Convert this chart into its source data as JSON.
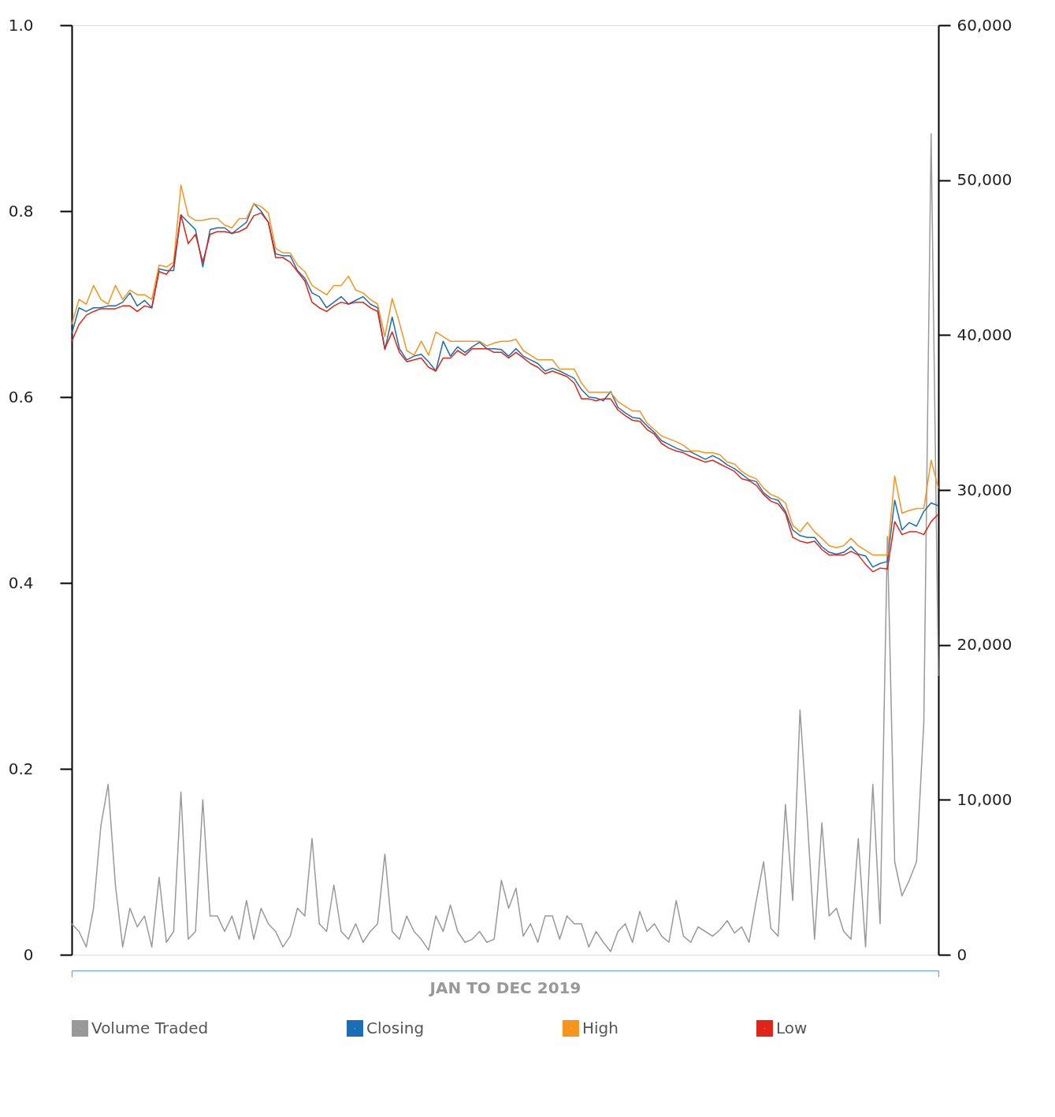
{
  "chart_data": {
    "type": "line",
    "xlabel": "JAN TO DEC 2019",
    "categories": [
      null,
      null,
      null,
      null,
      null,
      null,
      null,
      null,
      null,
      null,
      null,
      null,
      null,
      null,
      null,
      null,
      null,
      null,
      null,
      null,
      null,
      null,
      null,
      null,
      null,
      null,
      null,
      null,
      null,
      null,
      null,
      null,
      null,
      null,
      null,
      null,
      null,
      null,
      null,
      null,
      null,
      null,
      null,
      null,
      null,
      null,
      null,
      null,
      null,
      null,
      null,
      null,
      null,
      null,
      null,
      null,
      null,
      null,
      null,
      null,
      null,
      null,
      null,
      null,
      null,
      null,
      null,
      null,
      null,
      null,
      null,
      null,
      null,
      null,
      null,
      null,
      null,
      null,
      null,
      null,
      null,
      null,
      null,
      null,
      null,
      null,
      null,
      null,
      null,
      null,
      null,
      null,
      null,
      null,
      null,
      null,
      null,
      null,
      null,
      null,
      null,
      null,
      null,
      null,
      null,
      null,
      null,
      null,
      null,
      null,
      null,
      null,
      null,
      null,
      null,
      null,
      null,
      null,
      null,
      null
    ],
    "ylim": [
      0,
      1
    ],
    "yticks": [
      0,
      0.2,
      0.4,
      0.6,
      0.8,
      {
        "value": 1,
        "label": "1.0"
      }
    ],
    "y2lim": [
      0,
      60000
    ],
    "y2ticks": [
      0,
      {
        "value": 10000,
        "label": "10,000"
      },
      {
        "value": 20000,
        "label": "20,000"
      },
      {
        "value": 30000,
        "label": "30,000"
      },
      {
        "value": 40000,
        "label": "40,000"
      },
      {
        "value": 50000,
        "label": "50,000"
      },
      {
        "value": 60000,
        "label": "60,000"
      }
    ],
    "grid": false,
    "legend": "bottom",
    "tick_labels": "y",
    "marker": "none",
    "line_style": "solid",
    "series": [
      {
        "name": "Volume Traded",
        "color": "#999999",
        "axis": "y2",
        "values": [
          2000,
          1500,
          500,
          3000,
          8300,
          11000,
          4500,
          500,
          3000,
          1800,
          2500,
          500,
          5000,
          800,
          1500,
          10500,
          1000,
          1500,
          10000,
          2500,
          2500,
          1500,
          2500,
          1000,
          3500,
          1000,
          3000,
          2000,
          1500,
          500,
          1200,
          3000,
          2500,
          7500,
          2000,
          1500,
          4500,
          1500,
          1000,
          2000,
          800,
          1500,
          2000,
          6500,
          1500,
          1000,
          2500,
          1500,
          1000,
          300,
          2500,
          1500,
          3200,
          1500,
          800,
          1000,
          1500,
          800,
          1000,
          4800,
          3000,
          4300,
          1200,
          2000,
          800,
          2500,
          2500,
          1000,
          2500,
          2000,
          2000,
          500,
          1500,
          800,
          200,
          1500,
          2000,
          800,
          2800,
          1500,
          2000,
          1200,
          800,
          3500,
          1200,
          800,
          1800,
          1500,
          1200,
          1600,
          2200,
          1400,
          1800,
          800,
          3500,
          6000,
          1700,
          1200,
          9700,
          3500,
          15800,
          8800,
          1000,
          8500,
          2500,
          3000,
          1500,
          1000,
          7500,
          500,
          11000,
          2000,
          27000,
          6000,
          3800,
          4800,
          6000,
          15000,
          53000,
          18000
        ]
      },
      {
        "name": "Closing",
        "color": "#1a6eb5",
        "values": [
          0.668,
          0.696,
          0.692,
          0.696,
          0.696,
          0.698,
          0.698,
          0.702,
          0.712,
          0.698,
          0.704,
          0.696,
          0.738,
          0.736,
          0.736,
          0.796,
          0.788,
          0.78,
          0.74,
          0.78,
          0.782,
          0.782,
          0.776,
          0.782,
          0.788,
          0.808,
          0.8,
          0.788,
          0.754,
          0.752,
          0.752,
          0.736,
          0.728,
          0.712,
          0.708,
          0.696,
          0.702,
          0.708,
          0.7,
          0.704,
          0.708,
          0.7,
          0.696,
          0.651,
          0.686,
          0.652,
          0.64,
          0.644,
          0.646,
          0.638,
          0.628,
          0.66,
          0.644,
          0.654,
          0.648,
          0.654,
          0.659,
          0.652,
          0.652,
          0.651,
          0.644,
          0.652,
          0.644,
          0.64,
          0.636,
          0.628,
          0.631,
          0.628,
          0.624,
          0.62,
          0.608,
          0.6,
          0.599,
          0.596,
          0.606,
          0.589,
          0.583,
          0.578,
          0.577,
          0.569,
          0.562,
          0.553,
          0.549,
          0.545,
          0.542,
          0.541,
          0.537,
          0.533,
          0.537,
          0.533,
          0.527,
          0.523,
          0.517,
          0.511,
          0.509,
          0.497,
          0.491,
          0.489,
          0.477,
          0.457,
          0.451,
          0.449,
          0.449,
          0.439,
          0.433,
          0.431,
          0.433,
          0.439,
          0.431,
          0.429,
          0.417,
          0.421,
          0.423,
          0.489,
          0.457,
          0.465,
          0.461,
          0.477,
          0.486,
          0.483
        ]
      },
      {
        "name": "High",
        "color": "#f7941d",
        "values": [
          0.678,
          0.705,
          0.7,
          0.72,
          0.705,
          0.7,
          0.72,
          0.705,
          0.715,
          0.71,
          0.71,
          0.705,
          0.742,
          0.74,
          0.745,
          0.828,
          0.795,
          0.79,
          0.79,
          0.792,
          0.792,
          0.785,
          0.782,
          0.792,
          0.792,
          0.808,
          0.805,
          0.798,
          0.76,
          0.755,
          0.755,
          0.742,
          0.735,
          0.72,
          0.715,
          0.71,
          0.72,
          0.72,
          0.73,
          0.715,
          0.712,
          0.705,
          0.7,
          0.665,
          0.706,
          0.68,
          0.65,
          0.645,
          0.66,
          0.645,
          0.67,
          0.665,
          0.66,
          0.66,
          0.66,
          0.66,
          0.66,
          0.655,
          0.658,
          0.66,
          0.66,
          0.662,
          0.65,
          0.645,
          0.64,
          0.64,
          0.64,
          0.63,
          0.63,
          0.63,
          0.615,
          0.605,
          0.605,
          0.605,
          0.605,
          0.595,
          0.59,
          0.585,
          0.585,
          0.572,
          0.565,
          0.558,
          0.555,
          0.552,
          0.548,
          0.542,
          0.542,
          0.54,
          0.54,
          0.538,
          0.53,
          0.528,
          0.52,
          0.515,
          0.512,
          0.502,
          0.495,
          0.492,
          0.486,
          0.462,
          0.455,
          0.465,
          0.455,
          0.448,
          0.44,
          0.438,
          0.44,
          0.448,
          0.44,
          0.435,
          0.43,
          0.43,
          0.43,
          0.515,
          0.475,
          0.478,
          0.48,
          0.48,
          0.532,
          0.502
        ]
      },
      {
        "name": "Low",
        "color": "#e2231a",
        "values": [
          0.66,
          0.678,
          0.688,
          0.692,
          0.695,
          0.695,
          0.695,
          0.698,
          0.698,
          0.692,
          0.698,
          0.696,
          0.735,
          0.732,
          0.742,
          0.796,
          0.765,
          0.775,
          0.745,
          0.775,
          0.778,
          0.778,
          0.776,
          0.778,
          0.782,
          0.795,
          0.798,
          0.788,
          0.75,
          0.75,
          0.745,
          0.735,
          0.725,
          0.702,
          0.696,
          0.692,
          0.698,
          0.702,
          0.7,
          0.702,
          0.702,
          0.696,
          0.692,
          0.652,
          0.67,
          0.648,
          0.638,
          0.64,
          0.642,
          0.632,
          0.628,
          0.642,
          0.642,
          0.65,
          0.645,
          0.652,
          0.652,
          0.652,
          0.648,
          0.648,
          0.642,
          0.648,
          0.642,
          0.636,
          0.632,
          0.625,
          0.628,
          0.625,
          0.622,
          0.615,
          0.598,
          0.598,
          0.596,
          0.598,
          0.598,
          0.586,
          0.58,
          0.575,
          0.574,
          0.565,
          0.56,
          0.55,
          0.545,
          0.542,
          0.54,
          0.536,
          0.533,
          0.53,
          0.532,
          0.528,
          0.524,
          0.52,
          0.512,
          0.51,
          0.505,
          0.495,
          0.488,
          0.485,
          0.475,
          0.449,
          0.445,
          0.443,
          0.445,
          0.436,
          0.43,
          0.43,
          0.43,
          0.434,
          0.43,
          0.42,
          0.412,
          0.416,
          0.415,
          0.466,
          0.452,
          0.455,
          0.455,
          0.452,
          0.466,
          0.474
        ]
      }
    ]
  }
}
